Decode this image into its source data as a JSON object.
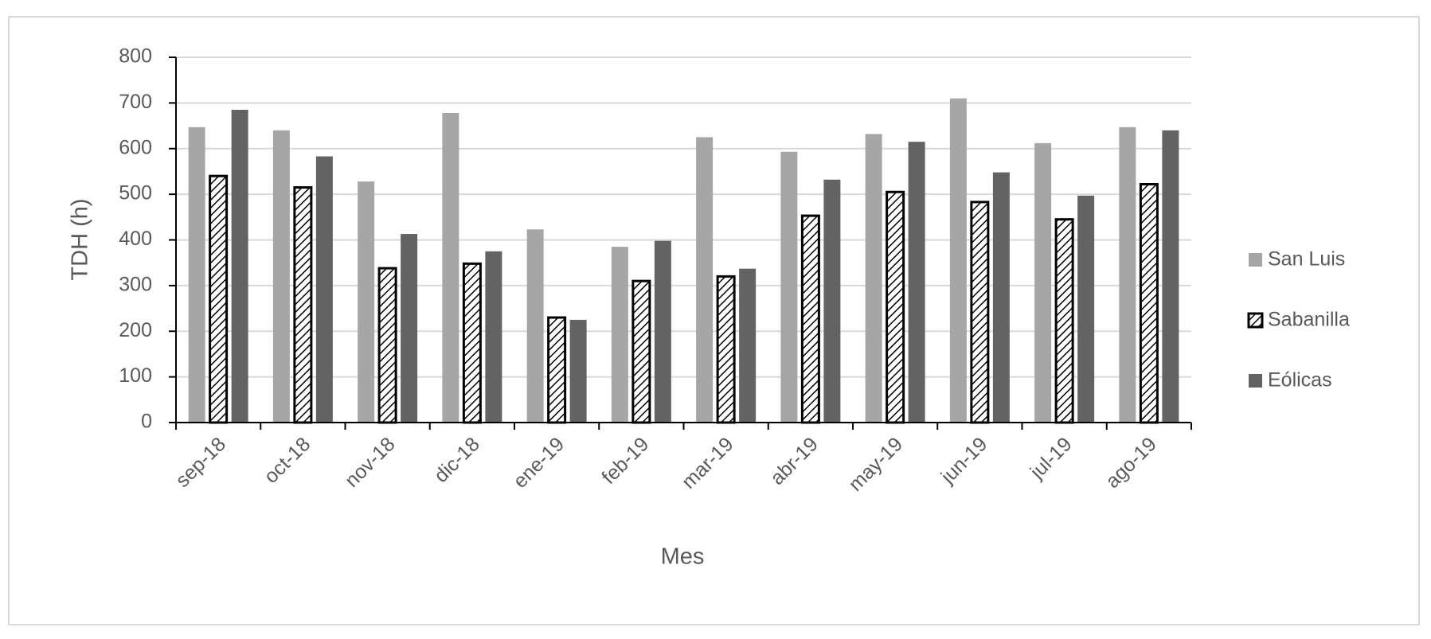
{
  "chart_data": {
    "type": "bar",
    "x_label": "Mes",
    "y_label": "TDH (h)",
    "categories": [
      "sep-18",
      "oct-18",
      "nov-18",
      "dic-18",
      "ene-19",
      "feb-19",
      "mar-19",
      "abr-19",
      "may-19",
      "jun-19",
      "jul-19",
      "ago-19"
    ],
    "series": [
      {
        "name": "San Luis",
        "color": "#a6a6a6",
        "values": [
          647,
          640,
          528,
          678,
          423,
          385,
          625,
          593,
          632,
          710,
          612,
          647
        ]
      },
      {
        "name": "Sabanilla",
        "color": "#000000",
        "hatch": true,
        "values": [
          540,
          515,
          338,
          348,
          230,
          310,
          320,
          453,
          505,
          483,
          445,
          522
        ]
      },
      {
        "name": "Eólicas",
        "color": "#636363",
        "values": [
          685,
          583,
          413,
          375,
          225,
          398,
          337,
          532,
          615,
          548,
          497,
          640
        ]
      }
    ],
    "ylim": [
      0,
      800
    ],
    "yticks": [
      0,
      100,
      200,
      300,
      400,
      500,
      600,
      700,
      800
    ],
    "grid": true,
    "legend": "right"
  }
}
